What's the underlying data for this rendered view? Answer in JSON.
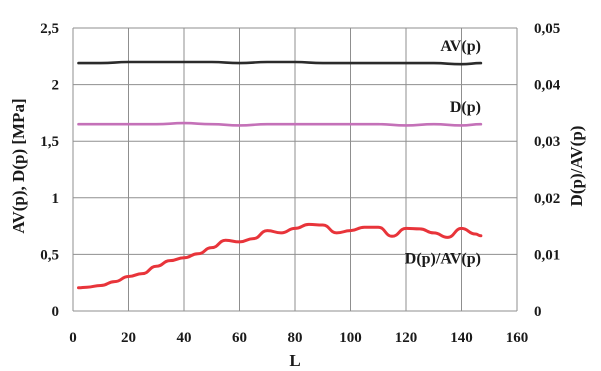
{
  "chart_data": {
    "type": "line",
    "xlabel": "L",
    "ylabel_left": "AV(p), D(p) [MPa]",
    "ylabel_right": "D(p)/AV(p)",
    "xlim": [
      0,
      160
    ],
    "ylim_left": [
      0,
      2.5
    ],
    "ylim_right": [
      0,
      0.05
    ],
    "x_ticks": [
      "0",
      "20",
      "40",
      "60",
      "80",
      "100",
      "120",
      "140",
      "160"
    ],
    "y_left_ticks": [
      "0",
      "0,5",
      "1",
      "1,5",
      "2",
      "2,5"
    ],
    "y_right_ticks": [
      "0",
      "0,01",
      "0,02",
      "0,03",
      "0,04",
      "0,05"
    ],
    "grid": true,
    "series": [
      {
        "name": "AV(p)",
        "axis": "left",
        "color": "#2b2b2b",
        "x": [
          2,
          10,
          20,
          30,
          40,
          50,
          60,
          70,
          80,
          90,
          100,
          110,
          120,
          130,
          140,
          147
        ],
        "y": [
          2.19,
          2.19,
          2.2,
          2.2,
          2.2,
          2.2,
          2.19,
          2.2,
          2.2,
          2.19,
          2.19,
          2.19,
          2.19,
          2.19,
          2.18,
          2.19
        ]
      },
      {
        "name": "D(p)",
        "axis": "left",
        "color": "#c471b8",
        "x": [
          2,
          10,
          20,
          30,
          40,
          50,
          60,
          70,
          80,
          90,
          100,
          110,
          120,
          130,
          140,
          147
        ],
        "y": [
          1.65,
          1.65,
          1.65,
          1.65,
          1.66,
          1.65,
          1.64,
          1.65,
          1.65,
          1.65,
          1.65,
          1.65,
          1.64,
          1.65,
          1.64,
          1.65
        ]
      },
      {
        "name": "D(p)/AV(p)",
        "axis": "right",
        "color": "#e8343a",
        "x": [
          2,
          5,
          10,
          15,
          20,
          25,
          30,
          35,
          40,
          45,
          50,
          55,
          60,
          65,
          70,
          75,
          80,
          85,
          90,
          95,
          100,
          105,
          110,
          115,
          120,
          125,
          130,
          135,
          140,
          145,
          147
        ],
        "y": [
          0.0041,
          0.0042,
          0.0045,
          0.0052,
          0.0061,
          0.0066,
          0.0079,
          0.0089,
          0.0094,
          0.0101,
          0.0112,
          0.0125,
          0.0122,
          0.0128,
          0.0142,
          0.0138,
          0.0146,
          0.0153,
          0.0152,
          0.0138,
          0.0142,
          0.0148,
          0.0148,
          0.0132,
          0.0146,
          0.0145,
          0.0138,
          0.013,
          0.0146,
          0.0136,
          0.0133
        ]
      }
    ]
  }
}
